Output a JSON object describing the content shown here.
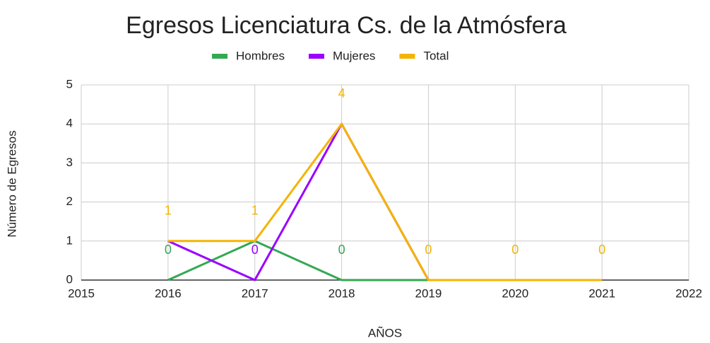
{
  "chart_data": {
    "type": "line",
    "title": "Egresos Licenciatura Cs. de la Atmósfera",
    "x_label": "AÑOS",
    "y_label": "Número de Egresos",
    "x": [
      2016,
      2017,
      2018,
      2019,
      2020,
      2021
    ],
    "series": [
      {
        "name": "Hombres",
        "color": "#34a853",
        "values": [
          0,
          1,
          0,
          0,
          0,
          0
        ],
        "value_labels": [
          "0",
          null,
          "0",
          null,
          null,
          null
        ]
      },
      {
        "name": "Mujeres",
        "color": "#9900ff",
        "values": [
          1,
          0,
          4,
          0,
          0,
          0
        ],
        "value_labels": [
          null,
          "0",
          null,
          null,
          null,
          null
        ]
      },
      {
        "name": "Total",
        "color": "#f4b400",
        "values": [
          1,
          1,
          4,
          0,
          0,
          0
        ],
        "value_labels": [
          "1",
          "1",
          "4",
          "0",
          "0",
          "0"
        ]
      }
    ],
    "xlim": [
      2015,
      2022
    ],
    "xticks": [
      2015,
      2016,
      2017,
      2018,
      2019,
      2020,
      2021,
      2022
    ],
    "ylim": [
      0,
      5
    ],
    "yticks": [
      0,
      1,
      2,
      3,
      4,
      5
    ],
    "grid": true,
    "legend": "top"
  }
}
